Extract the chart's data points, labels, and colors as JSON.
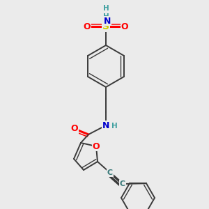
{
  "bg_color": "#ebebeb",
  "bond_color": "#3a3a3a",
  "bond_width": 1.4,
  "figsize": [
    3.0,
    3.0
  ],
  "dpi": 100,
  "colors": {
    "C": "#3a7a7a",
    "O": "#ff0000",
    "N": "#0000cc",
    "S": "#cccc00",
    "H": "#40a0a0"
  }
}
